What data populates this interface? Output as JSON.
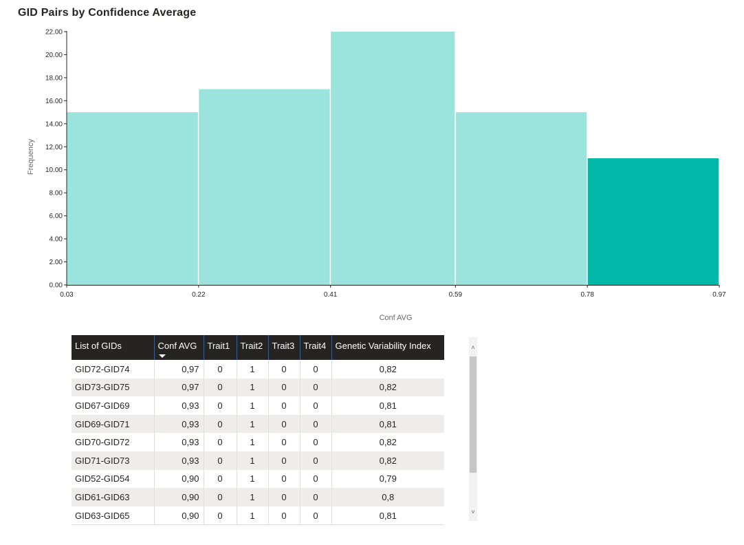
{
  "chart_data": {
    "type": "bar",
    "title": "GID Pairs by Confidence Average",
    "xlabel": "Conf AVG",
    "ylabel": "Frequency",
    "bin_edges": [
      0.03,
      0.22,
      0.41,
      0.59,
      0.78,
      0.97
    ],
    "x_tick_labels": [
      "0.03",
      "0.22",
      "0.41",
      "0.59",
      "0.78",
      "0.97"
    ],
    "values": [
      15,
      17,
      22,
      15,
      11
    ],
    "ylim": [
      0,
      22
    ],
    "y_tick_labels": [
      "0.00",
      "2.00",
      "4.00",
      "6.00",
      "8.00",
      "10.00",
      "12.00",
      "14.00",
      "16.00",
      "18.00",
      "20.00",
      "22.00"
    ],
    "colors": [
      "#9ce2dd",
      "#9ce2dd",
      "#9ce2dd",
      "#9ce2dd",
      "#01b8aa"
    ],
    "grid": false
  },
  "table": {
    "columns": [
      "List of GIDs",
      "Conf AVG",
      "Trait1",
      "Trait2",
      "Trait3",
      "Trait4",
      "Genetic Variability Index"
    ],
    "sort_column": "Conf AVG",
    "sort_direction": "descending",
    "rows": [
      [
        "GID72-GID74",
        "0,97",
        "0",
        "1",
        "0",
        "0",
        "0,82"
      ],
      [
        "GID73-GID75",
        "0,97",
        "0",
        "1",
        "0",
        "0",
        "0,82"
      ],
      [
        "GID67-GID69",
        "0,93",
        "0",
        "1",
        "0",
        "0",
        "0,81"
      ],
      [
        "GID69-GID71",
        "0,93",
        "0",
        "1",
        "0",
        "0",
        "0,81"
      ],
      [
        "GID70-GID72",
        "0,93",
        "0",
        "1",
        "0",
        "0",
        "0,82"
      ],
      [
        "GID71-GID73",
        "0,93",
        "0",
        "1",
        "0",
        "0",
        "0,82"
      ],
      [
        "GID52-GID54",
        "0,90",
        "0",
        "1",
        "0",
        "0",
        "0,79"
      ],
      [
        "GID61-GID63",
        "0,90",
        "0",
        "1",
        "0",
        "0",
        "0,8"
      ],
      [
        "GID63-GID65",
        "0,90",
        "0",
        "1",
        "0",
        "0",
        "0,81"
      ]
    ]
  },
  "scrollbar": {
    "up_glyph": "˄",
    "down_glyph": "˅",
    "up_icon": "chevron-up-icon",
    "down_icon": "chevron-down-icon"
  }
}
